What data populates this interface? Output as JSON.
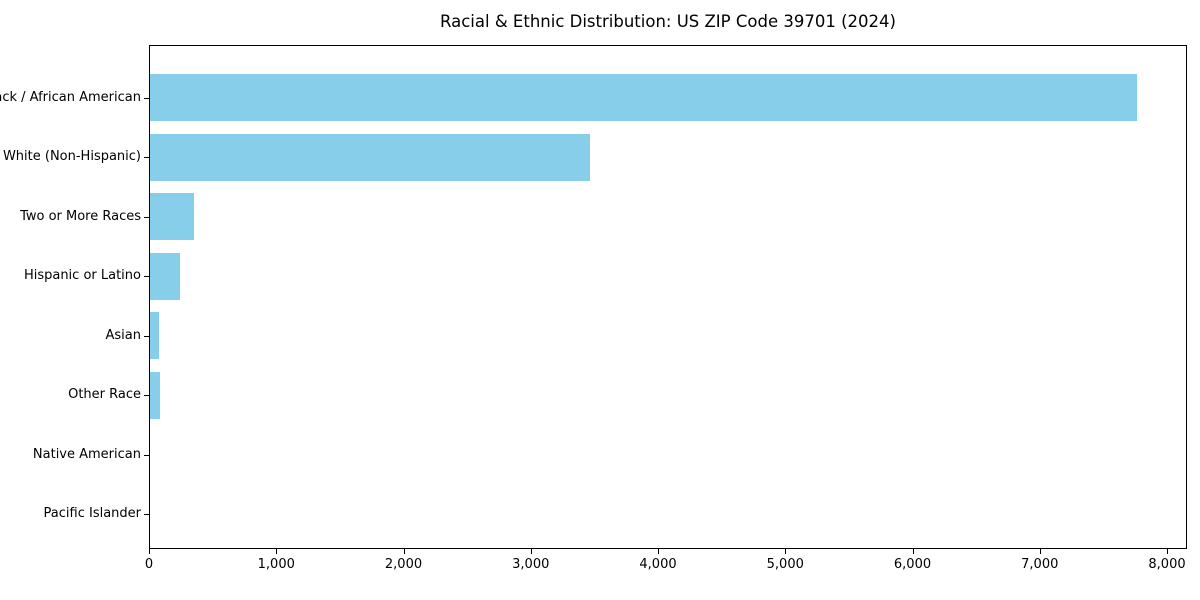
{
  "chart_data": {
    "type": "bar",
    "orientation": "horizontal",
    "title": "Racial & Ethnic Distribution: US ZIP Code 39701 (2024)",
    "categories": [
      "Black / African American",
      "White (Non-Hispanic)",
      "Two or More Races",
      "Hispanic or Latino",
      "Asian",
      "Other Race",
      "Native American",
      "Pacific Islander"
    ],
    "values": [
      7755,
      3460,
      345,
      235,
      70,
      78,
      0,
      0
    ],
    "xlabel": "",
    "ylabel": "",
    "xlim": [
      0,
      8158
    ],
    "xticks": [
      0,
      1000,
      2000,
      3000,
      4000,
      5000,
      6000,
      7000,
      8000
    ],
    "xtick_labels": [
      "0",
      "1,000",
      "2,000",
      "3,000",
      "4,000",
      "5,000",
      "6,000",
      "7,000",
      "8,000"
    ],
    "grid": false,
    "legend": false,
    "colors": {
      "bar": "#87CEEB",
      "axis": "#000000",
      "text": "#000000",
      "background": "#FFFFFF"
    }
  }
}
